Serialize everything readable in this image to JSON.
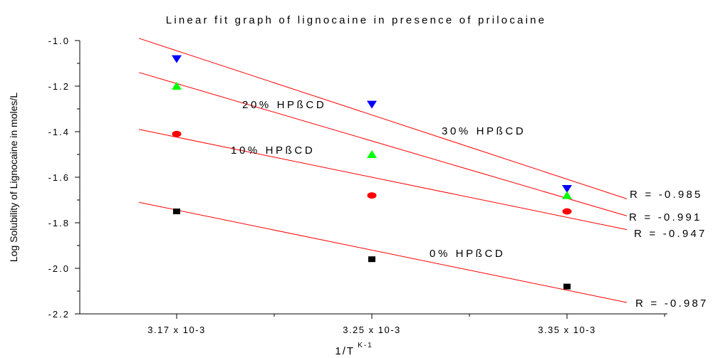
{
  "chart_data": {
    "type": "scatter",
    "title": "Linear fit graph of lignocaine in presence of prilocaine",
    "ylabel": "Log Solubility of Lignocaine in moles/L",
    "xlabel": {
      "main": "1/T",
      "sup": "K-1"
    },
    "ylim": [
      -2.2,
      -1.0
    ],
    "yticks": [
      -1.0,
      -1.2,
      -1.4,
      -1.6,
      -1.8,
      -2.0,
      -2.2
    ],
    "ytick_labels": [
      "-1.0",
      "-1.2",
      "-1.4",
      "-1.6",
      "-1.8",
      "-2.0",
      "-2.2"
    ],
    "categories": [
      "3.17 x 10-3",
      "3.25 x 10-3",
      "3.35 x 10-3"
    ],
    "grid": false,
    "legend": "none",
    "series": [
      {
        "key": "s30",
        "marker": "triangle-down",
        "color": "#0000ff",
        "values": [
          -1.08,
          -1.28,
          -1.65
        ]
      },
      {
        "key": "s20",
        "marker": "triangle-up",
        "color": "#00ff00",
        "values": [
          -1.2,
          -1.5,
          -1.68
        ]
      },
      {
        "key": "s10",
        "marker": "circle",
        "color": "#ff0000",
        "values": [
          -1.41,
          -1.68,
          -1.75
        ]
      },
      {
        "key": "s0",
        "marker": "square",
        "color": "#000000",
        "values": [
          -1.75,
          -1.96,
          -2.08
        ]
      }
    ],
    "fit_line_color": "#ff0000",
    "fit_lines": [
      {
        "key": "s30",
        "y_start": -0.99,
        "y_end": -1.695
      },
      {
        "key": "s20",
        "y_start": -1.14,
        "y_end": -1.77
      },
      {
        "key": "s10",
        "y_start": -1.39,
        "y_end": -1.83
      },
      {
        "key": "s0",
        "y_start": -1.71,
        "y_end": -2.15
      }
    ],
    "annotations": {
      "label_30": "30% HPßCD",
      "label_20": "20% HPßCD",
      "label_10": "10% HPßCD",
      "label_0": "0% HPßCD",
      "r_30": "R = -0.985",
      "r_20": "R = -0.991",
      "r_10": "R = -0.947",
      "r_0": "R = -0.987"
    }
  }
}
